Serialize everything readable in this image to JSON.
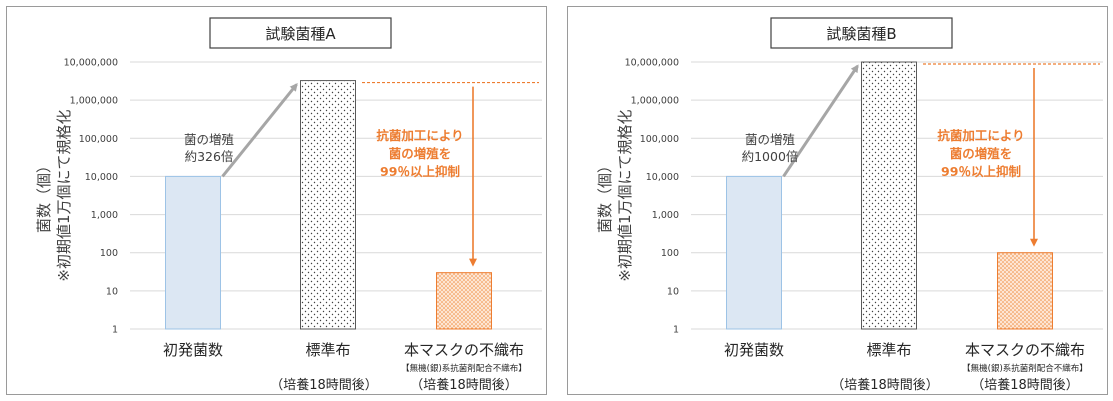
{
  "colors": {
    "initial_fill": "#dce7f3",
    "initial_stroke": "#9dc3e6",
    "standard_dot": "#404040",
    "mask_dot": "#f08a3c",
    "orange": "#ed7d31",
    "arrow_gray": "#a6a6a6",
    "grid": "#d9d9d9",
    "axis_text": "#404040"
  },
  "y_axis_label_line1": "菌数（個）",
  "y_axis_label_line2": "※初期値1万個にて規格化",
  "chart_data": [
    {
      "type": "bar",
      "title": "試験菌種A",
      "yscale": "log",
      "ylim": [
        1,
        10000000
      ],
      "yticks": [
        "1",
        "10",
        "100",
        "1,000",
        "10,000",
        "100,000",
        "1,000,000",
        "10,000,000"
      ],
      "categories": [
        "初発菌数",
        "標準布",
        "本マスクの不織布"
      ],
      "category_sublabels": [
        "",
        "（培養18時間後）",
        "（培養18時間後）"
      ],
      "category_notes": [
        "",
        "",
        "【無機(銀)系抗菌剤配合不織布】"
      ],
      "values": [
        10000,
        3260000,
        30
      ],
      "bar_patterns": [
        "solid",
        "dots",
        "orange-dots"
      ],
      "growth_annotation": [
        "菌の増殖",
        "約326倍"
      ],
      "suppression_annotation": [
        "抗菌加工により",
        "菌の増殖を",
        "99％以上抑制"
      ],
      "reference_line_value": 3260000
    },
    {
      "type": "bar",
      "title": "試験菌種B",
      "yscale": "log",
      "ylim": [
        1,
        10000000
      ],
      "yticks": [
        "1",
        "10",
        "100",
        "1,000",
        "10,000",
        "100,000",
        "1,000,000",
        "10,000,000"
      ],
      "categories": [
        "初発菌数",
        "標準布",
        "本マスクの不織布"
      ],
      "category_sublabels": [
        "",
        "（培養18時間後）",
        "（培養18時間後）"
      ],
      "category_notes": [
        "",
        "",
        "【無機(銀)系抗菌剤配合不織布】"
      ],
      "values": [
        10000,
        10000000,
        100
      ],
      "bar_patterns": [
        "solid",
        "dots",
        "orange-dots"
      ],
      "growth_annotation": [
        "菌の増殖",
        "約1000倍"
      ],
      "suppression_annotation": [
        "抗菌加工により",
        "菌の増殖を",
        "99％以上抑制"
      ],
      "reference_line_value": 10000000
    }
  ]
}
